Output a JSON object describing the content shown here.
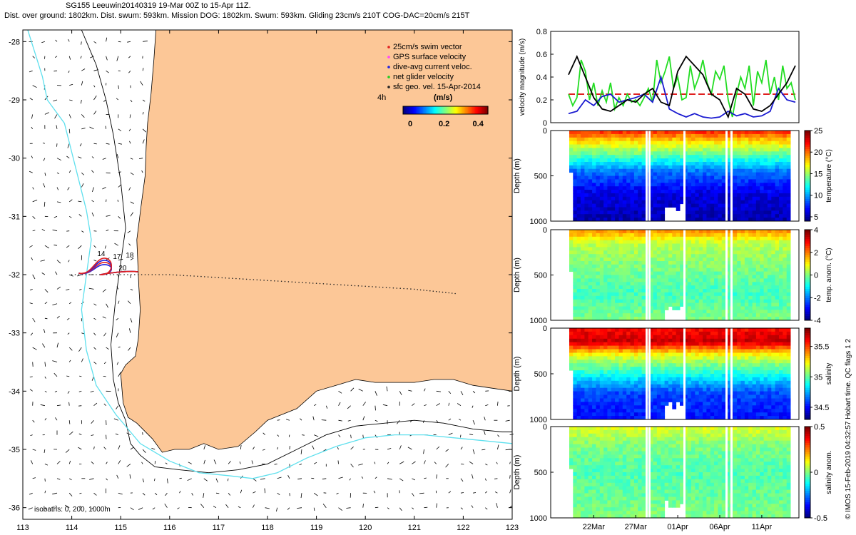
{
  "header": {
    "line1": "SG155 Leeuwin20140319 19-Mar 00Z to 15-Apr 11Z.",
    "line2": "Dist. over ground: 1802km. Dist. swum: 593km. Mission DOG: 1802km. Swum: 593km. Gliding 23cm/s 210T COG-DAC=20cm/s 215T"
  },
  "colors": {
    "land": "#fcc797",
    "track": "#222222",
    "swim": "#e02020",
    "gps": "#ff44ff",
    "dac": "#2020e0",
    "net": "#22cc22",
    "isobath200": "#000000",
    "isobath1000": "#5fe0ee",
    "vel_net": "#22dd22",
    "vel_dac": "#1a1ad0",
    "vel_swim": "#e02020",
    "vel_geo": "#000000"
  },
  "chart_data": [
    {
      "type": "map",
      "xlabel": "",
      "ylabel": "",
      "x_ticks": [
        "113",
        "114",
        "115",
        "116",
        "117",
        "118",
        "119",
        "120",
        "121",
        "122",
        "123"
      ],
      "y_ticks": [
        "-28",
        "-29",
        "-30",
        "-31",
        "-32",
        "-33",
        "-34",
        "-35",
        "-36"
      ],
      "xlim": [
        113,
        123
      ],
      "ylim": [
        -36.2,
        -27.8
      ],
      "legend": {
        "placement": "top-right",
        "items": [
          "25cm/s swim vector",
          "GPS surface velocity",
          "dive-avg current veloc.",
          "net glider velocity",
          "sfc geo. vel. 15-Apr-2014"
        ],
        "time_label": "4h",
        "colorbar_title": "(m/s)",
        "colorbar_ticks": [
          "0",
          "0.2",
          "0.4"
        ],
        "colorbar_range": [
          0,
          0.5
        ]
      },
      "isobaths_label": "isobaths: 0, 200, 1000m",
      "track_labels": [
        "14",
        "17",
        "18",
        "20"
      ],
      "track_lon": [
        114.0,
        115.0,
        116.0,
        117.0,
        118.0,
        119.0,
        120.0,
        121.0,
        121.9
      ],
      "track_lat": [
        -32.0,
        -32.0,
        -32.0,
        -32.05,
        -32.1,
        -32.15,
        -32.2,
        -32.25,
        -32.33
      ],
      "coast_lon": [
        115.72,
        115.68,
        115.62,
        115.55,
        115.52,
        115.5,
        115.42,
        115.33,
        115.35,
        115.37,
        115.4,
        115.36,
        115.3,
        115.1,
        115.0,
        115.05,
        115.15,
        115.33,
        115.65,
        115.85,
        116.1,
        116.4,
        116.7,
        117.0,
        117.4,
        117.75,
        118.0,
        118.3,
        118.6,
        119.0,
        119.4,
        119.8,
        120.2,
        120.6,
        121.0,
        121.4,
        121.8,
        122.2,
        122.6,
        123.0
      ],
      "coast_lat": [
        -27.8,
        -28.3,
        -28.9,
        -29.4,
        -29.8,
        -30.3,
        -30.8,
        -31.4,
        -31.8,
        -32.2,
        -32.6,
        -33.1,
        -33.4,
        -33.55,
        -33.7,
        -34.2,
        -34.45,
        -34.55,
        -34.82,
        -35.05,
        -35.0,
        -35.0,
        -34.9,
        -35.0,
        -34.95,
        -34.7,
        -34.5,
        -34.4,
        -34.3,
        -34.0,
        -33.9,
        -33.8,
        -33.85,
        -33.85,
        -33.85,
        -33.8,
        -33.8,
        -33.9,
        -33.95,
        -34.0
      ],
      "isobath200_lon": [
        114.2,
        114.5,
        114.7,
        114.85,
        115.0,
        115.1,
        115.0,
        114.9,
        114.8,
        114.85,
        114.95,
        115.1,
        115.2,
        115.4,
        115.7,
        116.2,
        116.8,
        117.4,
        118.0,
        118.6,
        119.2,
        119.8,
        120.4,
        121.0,
        121.6,
        122.2,
        122.8,
        123.0
      ],
      "isobath200_lat": [
        -27.8,
        -28.4,
        -29.0,
        -29.6,
        -30.4,
        -31.2,
        -31.8,
        -32.4,
        -33.2,
        -33.8,
        -34.2,
        -34.5,
        -34.9,
        -35.1,
        -35.3,
        -35.35,
        -35.4,
        -35.35,
        -35.25,
        -35.0,
        -34.75,
        -34.6,
        -34.55,
        -34.5,
        -34.55,
        -34.65,
        -34.7,
        -34.7
      ],
      "isobath1000_lon": [
        113.1,
        113.25,
        113.4,
        113.5,
        113.85,
        114.0,
        114.15,
        114.3,
        114.4,
        114.3,
        114.2,
        114.3,
        114.5,
        114.9,
        115.4,
        116.0,
        116.6,
        117.2,
        117.7,
        118.2,
        118.8,
        119.4,
        120.0,
        120.6,
        121.2,
        121.8,
        122.4,
        123.0
      ],
      "isobath1000_lat": [
        -27.8,
        -28.2,
        -28.6,
        -29.0,
        -29.4,
        -29.9,
        -30.4,
        -30.9,
        -31.4,
        -32.0,
        -32.6,
        -33.3,
        -33.9,
        -34.4,
        -34.9,
        -35.2,
        -35.4,
        -35.45,
        -35.5,
        -35.4,
        -35.15,
        -34.95,
        -34.8,
        -34.75,
        -34.75,
        -34.8,
        -34.85,
        -34.9
      ]
    },
    {
      "type": "line",
      "ylabel": "velocity magnitude (m/s)",
      "y_ticks": [
        "0",
        "0.2",
        "0.4",
        "0.6",
        "0.8"
      ],
      "ylim": [
        0,
        0.8
      ],
      "xlim": [
        0,
        27
      ],
      "series": [
        {
          "name": "",
          "color_key": "vel_swim",
          "dashed": true,
          "x": [
            0,
            27
          ],
          "y": [
            0.25,
            0.25
          ]
        },
        {
          "name": "",
          "color_key": "vel_net",
          "x": [
            0,
            0.5,
            1,
            1.5,
            2,
            2.5,
            3,
            3.5,
            4,
            4.5,
            5,
            5.5,
            6,
            6.5,
            7,
            7.5,
            8,
            8.5,
            9,
            9.5,
            10,
            10.5,
            11,
            11.5,
            12,
            12.5,
            13,
            13.5,
            14,
            14.5,
            15,
            15.5,
            16,
            16.5,
            17,
            17.5,
            18,
            18.5,
            19,
            19.5,
            20,
            20.5,
            21,
            21.5,
            22,
            22.5,
            23,
            23.5,
            24,
            24.5,
            25,
            25.5,
            26,
            26.5,
            27
          ],
          "y": [
            0.25,
            0.15,
            0.22,
            0.55,
            0.45,
            0.2,
            0.35,
            0.15,
            0.28,
            0.18,
            0.35,
            0.12,
            0.22,
            0.15,
            0.25,
            0.18,
            0.2,
            0.15,
            0.22,
            0.3,
            0.18,
            0.55,
            0.35,
            0.45,
            0.58,
            0.3,
            0.4,
            0.2,
            0.22,
            0.5,
            0.3,
            0.4,
            0.55,
            0.35,
            0.25,
            0.45,
            0.38,
            0.5,
            0.2,
            0.05,
            0.25,
            0.4,
            0.3,
            0.5,
            0.15,
            0.45,
            0.35,
            0.55,
            0.25,
            0.4,
            0.2,
            0.5,
            0.3,
            0.35,
            0.2
          ]
        },
        {
          "name": "",
          "color_key": "vel_dac",
          "x": [
            0,
            1,
            2,
            3,
            4,
            5,
            6,
            7,
            8,
            9,
            10,
            11,
            12,
            13,
            14,
            15,
            16,
            17,
            18,
            19,
            20,
            21,
            22,
            23,
            24,
            25,
            26,
            27
          ],
          "y": [
            0.08,
            0.1,
            0.2,
            0.15,
            0.23,
            0.25,
            0.18,
            0.2,
            0.22,
            0.25,
            0.18,
            0.4,
            0.12,
            0.08,
            0.05,
            0.08,
            0.05,
            0.04,
            0.05,
            0.1,
            0.06,
            0.08,
            0.05,
            0.06,
            0.1,
            0.3,
            0.2,
            0.18
          ]
        },
        {
          "name": "",
          "color_key": "vel_geo",
          "x": [
            0,
            1,
            2,
            3,
            4,
            5,
            6,
            7,
            8,
            9,
            10,
            11,
            12,
            13,
            14,
            15,
            16,
            17,
            18,
            19,
            20,
            21,
            22,
            23,
            24,
            25,
            26,
            27
          ],
          "y": [
            0.42,
            0.58,
            0.4,
            0.22,
            0.12,
            0.1,
            0.15,
            0.2,
            0.18,
            0.25,
            0.3,
            0.18,
            0.15,
            0.45,
            0.58,
            0.5,
            0.42,
            0.25,
            0.2,
            0.05,
            0.3,
            0.25,
            0.12,
            0.1,
            0.15,
            0.25,
            0.35,
            0.5
          ]
        }
      ]
    },
    {
      "type": "heatmap",
      "ylabel": "Depth (m)",
      "y_ticks": [
        "0",
        "500",
        "1000"
      ],
      "ylim": [
        1000,
        0
      ],
      "colorbar_label": "temperature (°C)",
      "colorbar_ticks": [
        "5",
        "10",
        "15",
        "20",
        "25"
      ],
      "colorbar_range": [
        4,
        25
      ],
      "layers": [
        [
          0,
          22
        ],
        [
          110,
          18
        ],
        [
          260,
          14
        ],
        [
          450,
          9
        ],
        [
          700,
          6
        ],
        [
          1000,
          5
        ]
      ]
    },
    {
      "type": "heatmap",
      "ylabel": "Depth (m)",
      "y_ticks": [
        "0",
        "500",
        "1000"
      ],
      "ylim": [
        1000,
        0
      ],
      "colorbar_label": "temp. anom. (°C)",
      "colorbar_ticks": [
        "4",
        "2",
        "0",
        "-2",
        "-4"
      ],
      "colorbar_range": [
        -4,
        4
      ],
      "layers": [
        [
          0,
          2
        ],
        [
          150,
          0.5
        ],
        [
          400,
          0
        ],
        [
          700,
          -0.5
        ],
        [
          1000,
          0
        ]
      ]
    },
    {
      "type": "heatmap",
      "ylabel": "Depth (m)",
      "y_ticks": [
        "0",
        "500",
        "1000"
      ],
      "ylim": [
        1000,
        0
      ],
      "colorbar_label": "salinity",
      "colorbar_ticks": [
        "35.5",
        "35",
        "34.5"
      ],
      "colorbar_range": [
        34.3,
        35.8
      ],
      "layers": [
        [
          0,
          35.6
        ],
        [
          150,
          35.7
        ],
        [
          300,
          35.2
        ],
        [
          500,
          34.9
        ],
        [
          700,
          34.6
        ],
        [
          1000,
          34.5
        ]
      ]
    },
    {
      "type": "heatmap",
      "ylabel": "Depth (m)",
      "y_ticks": [
        "0",
        "500",
        "1000"
      ],
      "ylim": [
        1000,
        0
      ],
      "colorbar_label": "salinity anom.",
      "colorbar_ticks": [
        "0.5",
        "0",
        "-0.5"
      ],
      "colorbar_range": [
        -0.5,
        0.5
      ],
      "x_ticks": [
        "22Mar",
        "27Mar",
        "01Apr",
        "06Apr",
        "11Apr"
      ],
      "x_tick_days": [
        3,
        8,
        13,
        18,
        23
      ],
      "layers": [
        [
          0,
          0.1
        ],
        [
          200,
          0
        ],
        [
          500,
          -0.05
        ],
        [
          1000,
          0
        ]
      ]
    }
  ],
  "footer": {
    "copyright": "© IMOS 15-Feb-2019 04:32:57 Hobart time. QC flags 1  2"
  }
}
